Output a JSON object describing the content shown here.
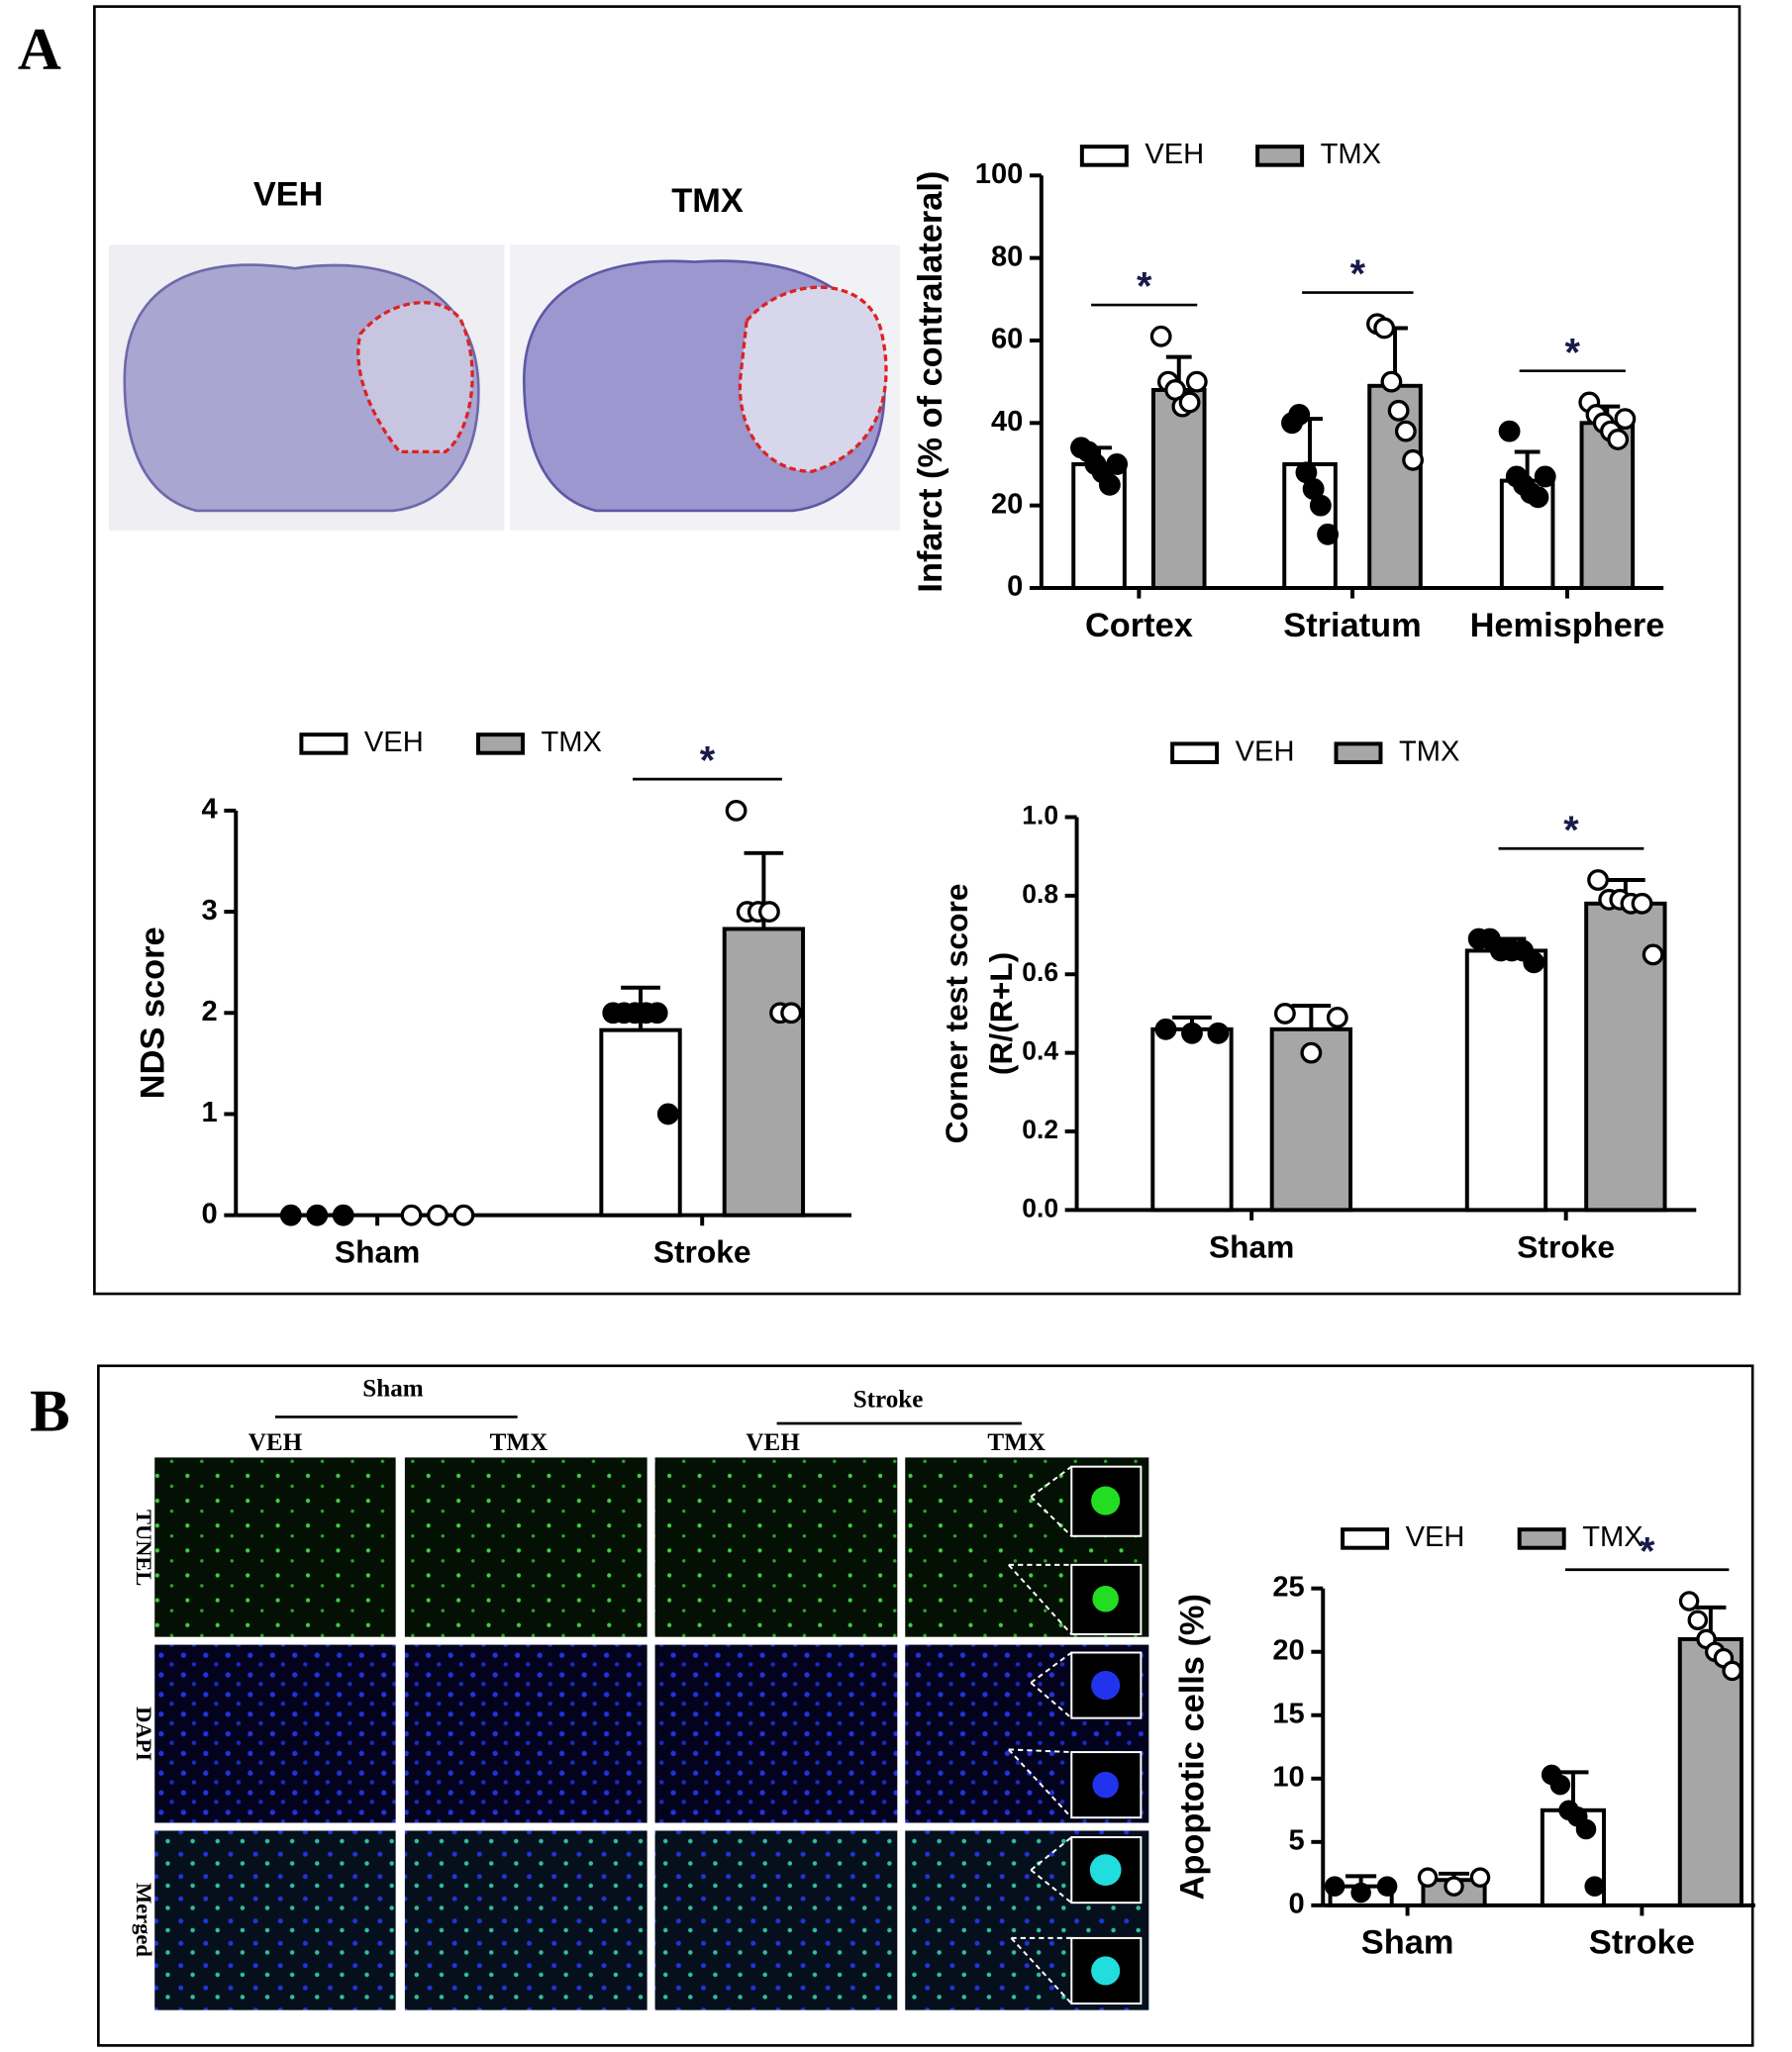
{
  "panel_labels": [
    "A",
    "B"
  ],
  "panel_a_images": {
    "labels": [
      "VEH",
      "TMX"
    ]
  },
  "panel_b_images": {
    "groups": [
      "Sham",
      "Stroke"
    ],
    "columns": [
      "VEH",
      "TMX",
      "VEH",
      "TMX"
    ],
    "rows": [
      "TUNEL",
      "DAPI",
      "Merged"
    ]
  },
  "chart_data": [
    {
      "type": "bar",
      "y_label": "Infarct (% of contralateral)",
      "categories": [
        "Cortex",
        "Striatum",
        "Hemisphere"
      ],
      "series": [
        {
          "name": "VEH",
          "color": "#ffffff",
          "marker_color": "#000000",
          "values": [
            30,
            30,
            26
          ],
          "errors": [
            4,
            11,
            7
          ],
          "points": [
            [
              34,
              33,
              30,
              28,
              25,
              30
            ],
            [
              40,
              42,
              28,
              24,
              20,
              13
            ],
            [
              38,
              27,
              25,
              23,
              22,
              27
            ]
          ]
        },
        {
          "name": "TMX",
          "color": "#a6a6a6",
          "marker_color": "#ffffff",
          "values": [
            48,
            49,
            40
          ],
          "errors": [
            8,
            14,
            4
          ],
          "points": [
            [
              61,
              50,
              48,
              44,
              45,
              50
            ],
            [
              64,
              63,
              50,
              43,
              38,
              31
            ],
            [
              45,
              42,
              40,
              38,
              36,
              41
            ]
          ]
        }
      ],
      "ylim": [
        0,
        100
      ],
      "yticks": [
        0,
        20,
        40,
        60,
        80,
        100
      ],
      "annotations": [
        "*",
        "*",
        "*"
      ]
    },
    {
      "type": "bar",
      "y_label": "NDS score",
      "categories": [
        "Sham",
        "Stroke"
      ],
      "series": [
        {
          "name": "VEH",
          "color": "#ffffff",
          "marker_color": "#000000",
          "values": [
            0,
            1.83
          ],
          "errors": [
            0,
            0.42
          ],
          "points": [
            [
              0,
              0,
              0
            ],
            [
              2,
              2,
              2,
              2,
              2,
              1
            ]
          ]
        },
        {
          "name": "TMX",
          "color": "#a6a6a6",
          "marker_color": "#ffffff",
          "values": [
            0,
            2.83
          ],
          "errors": [
            0,
            0.75
          ],
          "points": [
            [
              0,
              0,
              0
            ],
            [
              4,
              3,
              3,
              3,
              2,
              2
            ]
          ]
        }
      ],
      "ylim": [
        0,
        4
      ],
      "yticks": [
        0,
        1,
        2,
        3,
        4
      ],
      "annotations": [
        null,
        "*"
      ]
    },
    {
      "type": "bar",
      "y_label": [
        "Corner test score",
        "(R/(R+L)"
      ],
      "categories": [
        "Sham",
        "Stroke"
      ],
      "series": [
        {
          "name": "VEH",
          "color": "#ffffff",
          "marker_color": "#000000",
          "values": [
            0.46,
            0.66
          ],
          "errors": [
            0.03,
            0.03
          ],
          "points": [
            [
              0.46,
              0.45,
              0.45
            ],
            [
              0.69,
              0.69,
              0.66,
              0.66,
              0.66,
              0.63
            ]
          ]
        },
        {
          "name": "TMX",
          "color": "#a6a6a6",
          "marker_color": "#ffffff",
          "values": [
            0.46,
            0.78
          ],
          "errors": [
            0.06,
            0.06
          ],
          "points": [
            [
              0.5,
              0.4,
              0.49
            ],
            [
              0.84,
              0.79,
              0.79,
              0.78,
              0.78,
              0.65
            ]
          ]
        }
      ],
      "ylim": [
        0,
        1
      ],
      "yticks": [
        {
          "value": 0,
          "label": "0.0"
        },
        0.2,
        0.4,
        0.6,
        0.8,
        {
          "value": 1,
          "label": "1.0"
        }
      ],
      "annotations": [
        null,
        "*"
      ]
    },
    {
      "type": "bar",
      "y_label": "Apoptotic cells (%)",
      "categories": [
        "Sham",
        "Stroke"
      ],
      "series": [
        {
          "name": "VEH",
          "color": "#ffffff",
          "marker_color": "#000000",
          "values": [
            1.5,
            7.5
          ],
          "errors": [
            0.8,
            3
          ],
          "points": [
            [
              1.5,
              1,
              1.5
            ],
            [
              10.3,
              9.5,
              7.5,
              7,
              6,
              1.5
            ]
          ]
        },
        {
          "name": "TMX",
          "color": "#a6a6a6",
          "marker_color": "#ffffff",
          "values": [
            2,
            21
          ],
          "errors": [
            0.5,
            2.5
          ],
          "points": [
            [
              2.2,
              1.5,
              2.2
            ],
            [
              24,
              22.5,
              21,
              20,
              19.5,
              18.5
            ]
          ]
        }
      ],
      "ylim": [
        0,
        25
      ],
      "yticks": [
        0,
        5,
        10,
        15,
        20,
        25
      ],
      "annotations": [
        null,
        "*"
      ]
    }
  ]
}
